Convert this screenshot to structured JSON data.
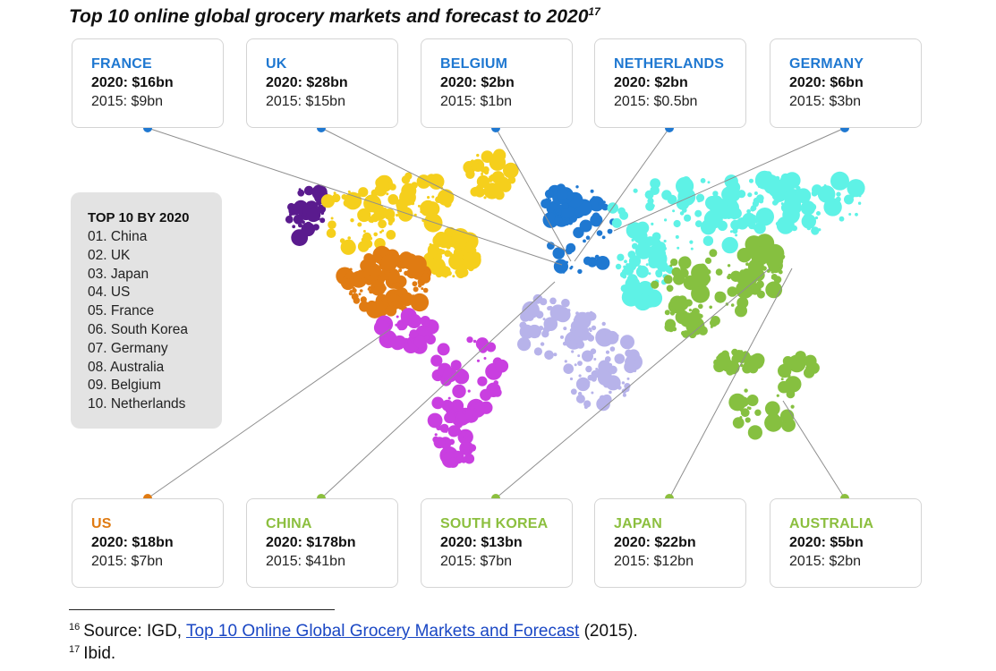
{
  "title": "Top 10 online global grocery markets and forecast to 2020",
  "title_sup": "17",
  "colors": {
    "blue": "#1f78d1",
    "orange": "#e07b12",
    "green": "#8cbf3f",
    "purple": "#5a1b8e",
    "yellow": "#f5cf1c",
    "magenta": "#c93fe0",
    "lilac": "#b7b3ea",
    "cyan": "#5ef2e6",
    "lime": "#86c040"
  },
  "markets": [
    {
      "name": "FRANCE",
      "v2020": "2020: $16bn",
      "v2015": "2015: $9bn"
    },
    {
      "name": "UK",
      "v2020": "2020: $28bn",
      "v2015": "2015: $15bn"
    },
    {
      "name": "BELGIUM",
      "v2020": "2020: $2bn",
      "v2015": "2015: $1bn"
    },
    {
      "name": "NETHERLANDS",
      "v2020": "2020: $2bn",
      "v2015": "2015: $0.5bn"
    },
    {
      "name": "GERMANY",
      "v2020": "2020: $6bn",
      "v2015": "2015: $3bn"
    },
    {
      "name": "US",
      "v2020": "2020: $18bn",
      "v2015": "2015: $7bn"
    },
    {
      "name": "CHINA",
      "v2020": "2020: $178bn",
      "v2015": "2015: $41bn"
    },
    {
      "name": "SOUTH KOREA",
      "v2020": "2020: $13bn",
      "v2015": "2015: $7bn"
    },
    {
      "name": "JAPAN",
      "v2020": "2020: $22bn",
      "v2015": "2015: $12bn"
    },
    {
      "name": "AUSTRALIA",
      "v2020": "2020: $5bn",
      "v2015": "2015: $2bn"
    }
  ],
  "top10": {
    "heading": "TOP 10 BY 2020",
    "items": [
      "01. China",
      "02. UK",
      "03. Japan",
      "04. US",
      "05. France",
      "06. South Korea",
      "07. Germany",
      "08. Australia",
      "09. Belgium",
      "10. Netherlands"
    ]
  },
  "footnotes": {
    "fn16_num": "16",
    "fn16_pre": "Source: IGD, ",
    "fn16_link": "Top 10 Online Global Grocery Markets and Forecast",
    "fn16_post": " (2015).",
    "fn17_num": "17",
    "fn17_text": "Ibid."
  }
}
